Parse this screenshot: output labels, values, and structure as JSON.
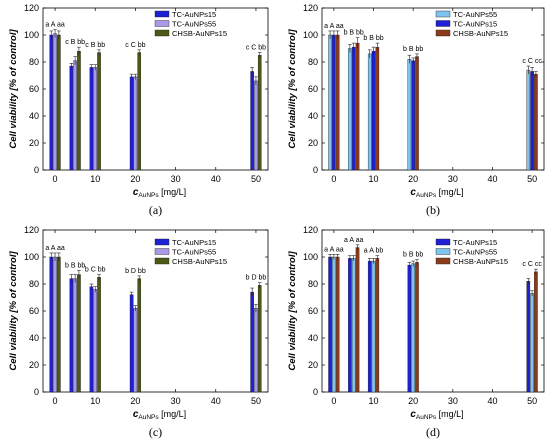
{
  "chart_data": [
    {
      "type": "bar",
      "caption": "(a)",
      "ylabel": "Cell viability [% of control]",
      "xlabel_main": "c",
      "xlabel_sub": "AuNPs",
      "xlabel_unit": " [mg/L]",
      "ylim": [
        0,
        120
      ],
      "yticks": [
        0,
        20,
        40,
        60,
        80,
        100,
        120
      ],
      "xlim": [
        -3,
        53
      ],
      "xticks": [
        0,
        10,
        20,
        30,
        40,
        50
      ],
      "x": [
        0,
        5,
        10,
        20,
        50
      ],
      "series": [
        {
          "name": "TC-AuNPs15",
          "color": "#1f1fd6",
          "values": [
            100,
            77,
            76,
            69,
            73
          ],
          "errors": [
            3,
            2,
            2,
            2,
            3
          ]
        },
        {
          "name": "TC-AuNPs55",
          "color": "#a999e6",
          "values": [
            101,
            81,
            76,
            69,
            66
          ],
          "errors": [
            3,
            3,
            2,
            2,
            3
          ]
        },
        {
          "name": "CHSB-AuNPs15",
          "color": "#4a5a16",
          "values": [
            100,
            88,
            87,
            87,
            85
          ],
          "errors": [
            3,
            3,
            2,
            2,
            2
          ]
        }
      ],
      "labels": [
        "a A aa",
        "c B bb",
        "c B bb",
        "c C  bb",
        "c C  bb"
      ]
    },
    {
      "type": "bar",
      "caption": "(b)",
      "ylabel": "Cell viability [% of control]",
      "xlabel_main": "c",
      "xlabel_sub": "AuNPs",
      "xlabel_unit": " [mg/L]",
      "ylim": [
        0,
        120
      ],
      "yticks": [
        0,
        20,
        40,
        60,
        80,
        100,
        120
      ],
      "xlim": [
        -3,
        53
      ],
      "xticks": [
        0,
        10,
        20,
        30,
        40,
        50
      ],
      "x": [
        0,
        5,
        10,
        20,
        50
      ],
      "series": [
        {
          "name": "TC-AuNPs55",
          "color": "#7fc4ee",
          "values": [
            100,
            90,
            86,
            82,
            74
          ],
          "errors": [
            3,
            3,
            3,
            3,
            3
          ]
        },
        {
          "name": "TC-AuNPs15",
          "color": "#1f1fd6",
          "values": [
            100,
            91,
            88,
            81,
            73
          ],
          "errors": [
            3,
            3,
            3,
            2,
            3
          ]
        },
        {
          "name": "CHSB-AuNPs15",
          "color": "#8b3b1a",
          "values": [
            100,
            94,
            91,
            84,
            71
          ],
          "errors": [
            3,
            4,
            3,
            2,
            2
          ]
        }
      ],
      "labels": [
        "a A aa",
        "b B bb",
        "b B bb",
        "b B bb",
        "c C cc"
      ]
    },
    {
      "type": "bar",
      "caption": "(c)",
      "ylabel": "Cell viability [% of control]",
      "xlabel_main": "c",
      "xlabel_sub": "AuNPs",
      "xlabel_unit": " [mg/L]",
      "ylim": [
        0,
        120
      ],
      "yticks": [
        0,
        20,
        40,
        60,
        80,
        100,
        120
      ],
      "xlim": [
        -3,
        53
      ],
      "xticks": [
        0,
        10,
        20,
        30,
        40,
        50
      ],
      "x": [
        0,
        5,
        10,
        20,
        50
      ],
      "series": [
        {
          "name": "TC-AuNPs15",
          "color": "#1f1fd6",
          "values": [
            100,
            84,
            78,
            72,
            74
          ],
          "errors": [
            3,
            3,
            2,
            2,
            3
          ]
        },
        {
          "name": "TC-AuNPs55",
          "color": "#a999e6",
          "values": [
            100,
            84,
            76,
            62,
            62
          ],
          "errors": [
            3,
            3,
            2,
            2,
            3
          ]
        },
        {
          "name": "CHSB-AuNPs15",
          "color": "#4a5a16",
          "values": [
            100,
            87,
            85,
            84,
            79
          ],
          "errors": [
            3,
            3,
            2,
            2,
            2
          ]
        }
      ],
      "labels": [
        "a A aa",
        "b B bb",
        "b C bb",
        "b D bb",
        "b D bb"
      ]
    },
    {
      "type": "bar",
      "caption": "(d)",
      "ylabel": "Cell viability [% of control]",
      "xlabel_main": "c",
      "xlabel_sub": "AuNPs",
      "xlabel_unit": " [mg/L]",
      "ylim": [
        0,
        120
      ],
      "yticks": [
        0,
        20,
        40,
        60,
        80,
        100,
        120
      ],
      "xlim": [
        -3,
        53
      ],
      "xticks": [
        0,
        10,
        20,
        30,
        40,
        50
      ],
      "x": [
        0,
        5,
        10,
        20,
        50
      ],
      "series": [
        {
          "name": "TC-AuNPs15",
          "color": "#1f1fd6",
          "values": [
            100,
            99,
            97,
            94,
            82
          ],
          "errors": [
            2,
            2,
            2,
            2,
            2
          ]
        },
        {
          "name": "TC-AuNPs55",
          "color": "#7fc4ee",
          "values": [
            100,
            99,
            97,
            95,
            73
          ],
          "errors": [
            2,
            2,
            2,
            2,
            2
          ]
        },
        {
          "name": "CHSB-AuNPs15",
          "color": "#8b3b1a",
          "values": [
            100,
            107,
            99,
            96,
            89
          ],
          "errors": [
            2,
            2,
            2,
            2,
            2
          ]
        }
      ],
      "labels": [
        "a A aa",
        "a A aa",
        "a A bb",
        "b B bb",
        "c C cc"
      ]
    }
  ]
}
